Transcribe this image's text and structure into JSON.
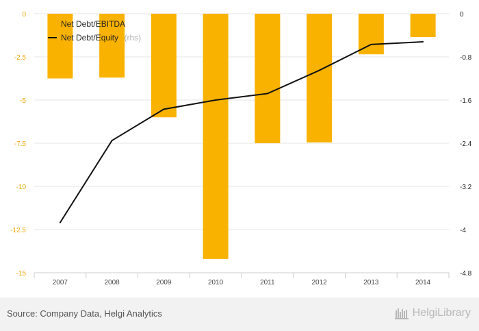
{
  "chart_data": {
    "type": "bar+line",
    "categories": [
      "2007",
      "2008",
      "2009",
      "2010",
      "2011",
      "2012",
      "2013",
      "2014"
    ],
    "series": [
      {
        "name": "Net Debt/EBITDA",
        "type": "bar",
        "axis": "left",
        "color": "#f9b200",
        "values": [
          -3.75,
          -3.7,
          -6.0,
          -14.2,
          -7.5,
          -7.45,
          -2.35,
          -1.35
        ]
      },
      {
        "name": "Net Debt/Equity",
        "axis_suffix": "(rhs)",
        "type": "line",
        "axis": "right",
        "color": "#111111",
        "values": [
          -3.87,
          -2.35,
          -1.77,
          -1.6,
          -1.48,
          -1.05,
          -0.57,
          -0.52
        ]
      }
    ],
    "left_axis": {
      "ylim": [
        -15,
        0
      ],
      "ticks": [
        0,
        -2.5,
        -5,
        -7.5,
        -10,
        -12.5,
        -15
      ],
      "tick_labels": [
        "0",
        "-2.5",
        "-5",
        "-7.5",
        "-10",
        "-12.5",
        "-15"
      ]
    },
    "right_axis": {
      "ylim": [
        -4.8,
        0
      ],
      "ticks": [
        0,
        -0.8,
        -1.6,
        -2.4,
        -3.2,
        -4,
        -4.8
      ],
      "tick_labels": [
        "0",
        "-0.8",
        "-1.6",
        "-2.4",
        "-3.2",
        "-4",
        "-4.8"
      ]
    },
    "grid": true,
    "legend_position": "top-left"
  },
  "footer": {
    "source": "Source: Company Data, Helgi Analytics",
    "brand": "HelgiLibrary",
    "brand_icon": "helgi-library-icon"
  }
}
